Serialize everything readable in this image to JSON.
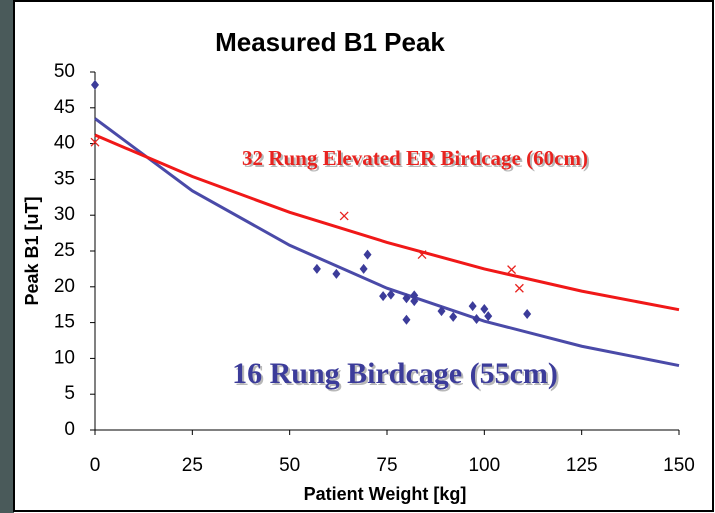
{
  "chart_data": {
    "type": "scatter",
    "title": "Measured B1 Peak",
    "x_label": "Patient Weight [kg]",
    "y_label": "Peak B1 [uT]",
    "xlim": [
      0,
      150
    ],
    "xticks": [
      0,
      25,
      50,
      75,
      100,
      125,
      150
    ],
    "ylim": [
      0,
      50
    ],
    "yticks": [
      0,
      5,
      10,
      15,
      20,
      25,
      30,
      35,
      40,
      45,
      50
    ],
    "series": [
      {
        "name": "16 Rung Birdcage (55cm)",
        "color": "#3c3c9a",
        "marker": "diamond",
        "x": [
          0,
          57,
          62,
          69,
          70,
          74,
          76,
          80,
          80,
          82,
          82,
          89,
          92,
          97,
          98,
          100,
          101,
          111
        ],
        "values": [
          48.2,
          22.5,
          21.8,
          22.5,
          24.5,
          18.7,
          18.9,
          18.4,
          15.4,
          18.0,
          18.8,
          16.6,
          15.8,
          17.3,
          15.5,
          16.9,
          15.9,
          16.2
        ],
        "trend": {
          "color": "#4a4aa8",
          "x": [
            0,
            25,
            50,
            75,
            100,
            125,
            150
          ],
          "values": [
            43.5,
            33.4,
            25.8,
            19.8,
            15.2,
            11.7,
            9.0
          ]
        }
      },
      {
        "name": "32 Rung Elevated ER Birdcage (60cm)",
        "color": "#e8231f",
        "marker": "x",
        "x": [
          0,
          64,
          84,
          107,
          109
        ],
        "values": [
          40.2,
          29.9,
          24.5,
          22.4,
          19.8
        ],
        "trend": {
          "color": "#f01818",
          "x": [
            0,
            25,
            50,
            75,
            100,
            125,
            150
          ],
          "values": [
            41.2,
            35.4,
            30.4,
            26.2,
            22.5,
            19.4,
            16.8
          ]
        }
      }
    ]
  }
}
